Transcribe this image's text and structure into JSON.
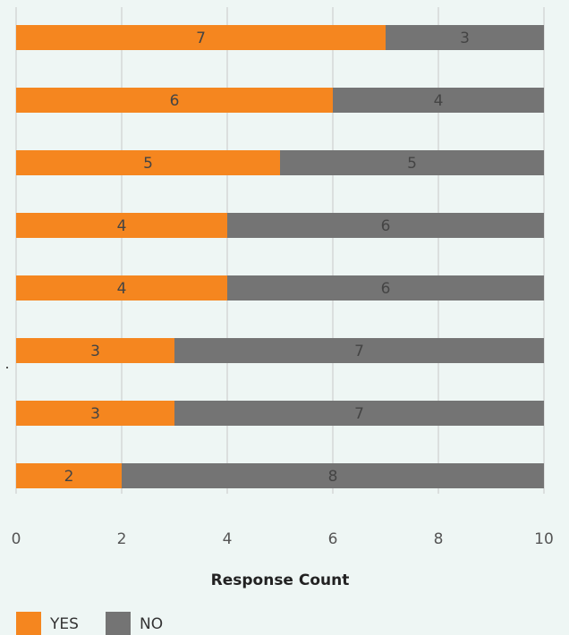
{
  "chart_data": {
    "type": "bar",
    "orientation": "horizontal",
    "stacked": true,
    "categories": [
      "",
      "",
      "",
      "",
      "",
      "",
      "",
      ""
    ],
    "series": [
      {
        "name": "YES",
        "color": "#f5861f",
        "values": [
          7,
          6,
          5,
          4,
          4,
          3,
          3,
          2
        ]
      },
      {
        "name": "NO",
        "color": "#747474",
        "values": [
          3,
          4,
          5,
          6,
          6,
          7,
          7,
          8
        ]
      }
    ],
    "xlabel": "Response Count",
    "ylabel": "",
    "xlim": [
      0,
      10
    ],
    "xticks": [
      "0",
      "2",
      "4",
      "6",
      "8",
      "10"
    ],
    "grid": true,
    "legend": "bottom-left",
    "data_labels": true,
    "background": "#eef6f4",
    "grid_color": "#c8c8c8"
  }
}
